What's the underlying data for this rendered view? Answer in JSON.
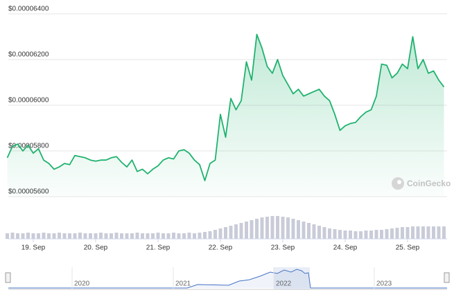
{
  "chart_data": {
    "type": "line",
    "color": "#1fb26e",
    "ylim": [
      5.6e-05,
      6.4e-05
    ],
    "yticks": [
      {
        "value": 5.6e-05,
        "label": "$0.00005600"
      },
      {
        "value": 5.8e-05,
        "label": "$0.00005800"
      },
      {
        "value": 6e-05,
        "label": "$0.00006000"
      },
      {
        "value": 6.2e-05,
        "label": "$0.00006200"
      },
      {
        "value": 6.4e-05,
        "label": "$0.00006400"
      }
    ],
    "grid": true,
    "categories": [
      null,
      null,
      null,
      null,
      null,
      "19. Sep",
      null,
      null,
      null,
      null,
      null,
      null,
      null,
      null,
      null,
      null,
      null,
      "20. Sep",
      null,
      null,
      null,
      null,
      null,
      null,
      null,
      null,
      null,
      null,
      null,
      "21. Sep",
      null,
      null,
      null,
      null,
      null,
      null,
      null,
      null,
      null,
      null,
      null,
      "22. Sep",
      null,
      null,
      null,
      null,
      null,
      null,
      null,
      null,
      null,
      null,
      null,
      "23. Sep",
      null,
      null,
      null,
      null,
      null,
      null,
      null,
      null,
      null,
      null,
      null,
      "24. Sep",
      null,
      null,
      null,
      null,
      null,
      null,
      null,
      null,
      null,
      null,
      null,
      "25. Sep",
      null,
      null,
      null,
      null,
      null,
      null,
      null
    ],
    "values": [
      5.77e-05,
      5.82e-05,
      5.83e-05,
      5.8e-05,
      5.825e-05,
      5.79e-05,
      5.81e-05,
      5.76e-05,
      5.745e-05,
      5.72e-05,
      5.73e-05,
      5.745e-05,
      5.74e-05,
      5.78e-05,
      5.775e-05,
      5.77e-05,
      5.76e-05,
      5.755e-05,
      5.76e-05,
      5.76e-05,
      5.77e-05,
      5.775e-05,
      5.75e-05,
      5.73e-05,
      5.76e-05,
      5.71e-05,
      5.72e-05,
      5.7e-05,
      5.72e-05,
      5.735e-05,
      5.76e-05,
      5.77e-05,
      5.765e-05,
      5.8e-05,
      5.805e-05,
      5.79e-05,
      5.76e-05,
      5.74e-05,
      5.67e-05,
      5.745e-05,
      5.76e-05,
      5.96e-05,
      5.86e-05,
      6.03e-05,
      5.98e-05,
      6.02e-05,
      6.19e-05,
      6.11e-05,
      6.31e-05,
      6.25e-05,
      6.17e-05,
      6.14e-05,
      6.2e-05,
      6.13e-05,
      6.09e-05,
      6.05e-05,
      6.07e-05,
      6.04e-05,
      6.05e-05,
      6.06e-05,
      6.07e-05,
      6.04e-05,
      6.02e-05,
      5.96e-05,
      5.89e-05,
      5.91e-05,
      5.92e-05,
      5.925e-05,
      5.95e-05,
      5.97e-05,
      5.98e-05,
      6.04e-05,
      6.18e-05,
      6.175e-05,
      6.12e-05,
      6.14e-05,
      6.18e-05,
      6.16e-05,
      6.3e-05,
      6.16e-05,
      6.2e-05,
      6.14e-05,
      6.15e-05,
      6.11e-05,
      6.08e-05
    ],
    "volume": {
      "color": "#c9ccd8",
      "values": [
        8,
        9,
        8,
        8,
        9,
        8,
        8,
        9,
        8,
        8,
        9,
        8,
        8,
        8,
        9,
        8,
        8,
        8,
        9,
        8,
        8,
        9,
        8,
        8,
        8,
        9,
        8,
        8,
        8,
        9,
        8,
        8,
        9,
        8,
        8,
        9,
        8,
        9,
        10,
        11,
        13,
        15,
        17,
        19,
        21,
        23,
        25,
        27,
        29,
        31,
        32,
        33,
        33,
        32,
        31,
        29,
        27,
        25,
        23,
        21,
        19,
        17,
        15,
        14,
        13,
        12,
        12,
        11,
        11,
        12,
        12,
        13,
        13,
        14,
        15,
        16,
        17,
        17,
        18,
        18,
        18,
        18,
        18,
        18,
        18
      ]
    },
    "navigator": {
      "labels": [
        "2020",
        "2021",
        "2022",
        "2023"
      ]
    },
    "watermark": "CoinGecko"
  }
}
